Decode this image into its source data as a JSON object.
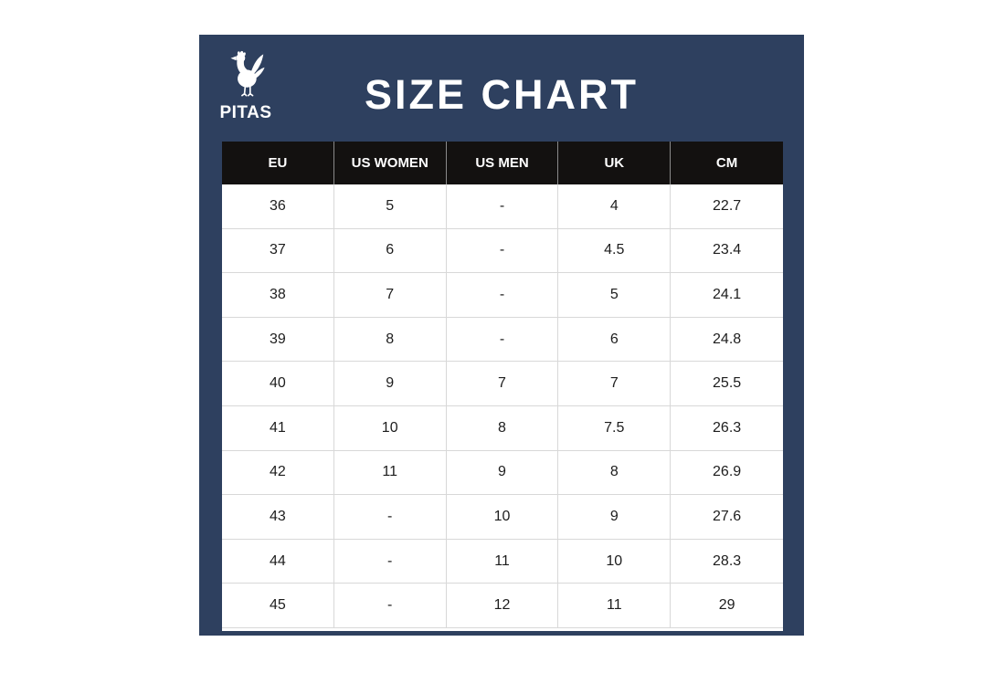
{
  "page": {
    "background": "#ffffff"
  },
  "panel": {
    "background": "#2e405f"
  },
  "logo": {
    "brand": "PITAS",
    "icon": "rooster-icon",
    "color": "#ffffff"
  },
  "title": "SIZE CHART",
  "table": {
    "header_bg": "#131110",
    "header_color": "#ffffff",
    "border_color": "#d8d8d8",
    "columns": [
      "EU",
      "US WOMEN",
      "US MEN",
      "UK",
      "CM"
    ],
    "rows": [
      [
        "36",
        "5",
        "-",
        "4",
        "22.7"
      ],
      [
        "37",
        "6",
        "-",
        "4.5",
        "23.4"
      ],
      [
        "38",
        "7",
        "-",
        "5",
        "24.1"
      ],
      [
        "39",
        "8",
        "-",
        "6",
        "24.8"
      ],
      [
        "40",
        "9",
        "7",
        "7",
        "25.5"
      ],
      [
        "41",
        "10",
        "8",
        "7.5",
        "26.3"
      ],
      [
        "42",
        "11",
        "9",
        "8",
        "26.9"
      ],
      [
        "43",
        "-",
        "10",
        "9",
        "27.6"
      ],
      [
        "44",
        "-",
        "11",
        "10",
        "28.3"
      ],
      [
        "45",
        "-",
        "12",
        "11",
        "29"
      ]
    ]
  },
  "chart_data": {
    "type": "table",
    "title": "SIZE CHART",
    "columns": [
      "EU",
      "US WOMEN",
      "US MEN",
      "UK",
      "CM"
    ],
    "rows": [
      [
        "36",
        "5",
        "-",
        "4",
        "22.7"
      ],
      [
        "37",
        "6",
        "-",
        "4.5",
        "23.4"
      ],
      [
        "38",
        "7",
        "-",
        "5",
        "24.1"
      ],
      [
        "39",
        "8",
        "-",
        "6",
        "24.8"
      ],
      [
        "40",
        "9",
        "7",
        "7",
        "25.5"
      ],
      [
        "41",
        "10",
        "8",
        "7.5",
        "26.3"
      ],
      [
        "42",
        "11",
        "9",
        "8",
        "26.9"
      ],
      [
        "43",
        "-",
        "10",
        "9",
        "27.6"
      ],
      [
        "44",
        "-",
        "11",
        "10",
        "28.3"
      ],
      [
        "45",
        "-",
        "12",
        "11",
        "29"
      ]
    ]
  }
}
